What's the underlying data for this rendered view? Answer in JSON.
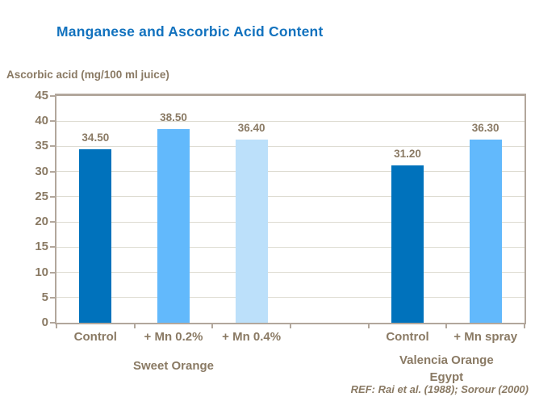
{
  "title": "Manganese and Ascorbic Acid Content",
  "y_axis_title": "Ascorbic acid (mg/100 ml juice)",
  "reference": "REF: Rai et al. (1988); Sorour (2000)",
  "colors": {
    "title": "#1272BE",
    "text": "#8A7A64",
    "bar_dark": "#0072BC",
    "bar_medium": "#62B9FC",
    "bar_light": "#BCE0FA",
    "grid": "#DEDCD2",
    "frame": "#B2A79C"
  },
  "chart_data": {
    "type": "bar",
    "title": "Manganese and Ascorbic Acid Content",
    "ylabel": "Ascorbic acid (mg/100 ml juice)",
    "ylim": [
      0,
      45
    ],
    "ytick_step": 5,
    "grid": true,
    "legend": false,
    "slots": 6,
    "bars": [
      {
        "slot": 0,
        "category": "Control",
        "value": 34.5,
        "label": "34.50",
        "color": "bar_dark"
      },
      {
        "slot": 1,
        "category": "+ Mn 0.2%",
        "value": 38.5,
        "label": "38.50",
        "color": "bar_medium"
      },
      {
        "slot": 2,
        "category": "+ Mn 0.4%",
        "value": 36.4,
        "label": "36.40",
        "color": "bar_light"
      },
      {
        "slot": 4,
        "category": "Control",
        "value": 31.2,
        "label": "31.20",
        "color": "bar_dark"
      },
      {
        "slot": 5,
        "category": "+ Mn spray",
        "value": 36.3,
        "label": "36.30",
        "color": "bar_medium"
      }
    ],
    "groups": [
      {
        "lines": [
          "Sweet Orange"
        ],
        "slot_start": 0,
        "slot_end": 2
      },
      {
        "lines": [
          "Valencia Orange",
          "Egypt"
        ],
        "slot_start": 4,
        "slot_end": 5
      }
    ],
    "annotation": "REF: Rai et al. (1988); Sorour (2000)"
  }
}
